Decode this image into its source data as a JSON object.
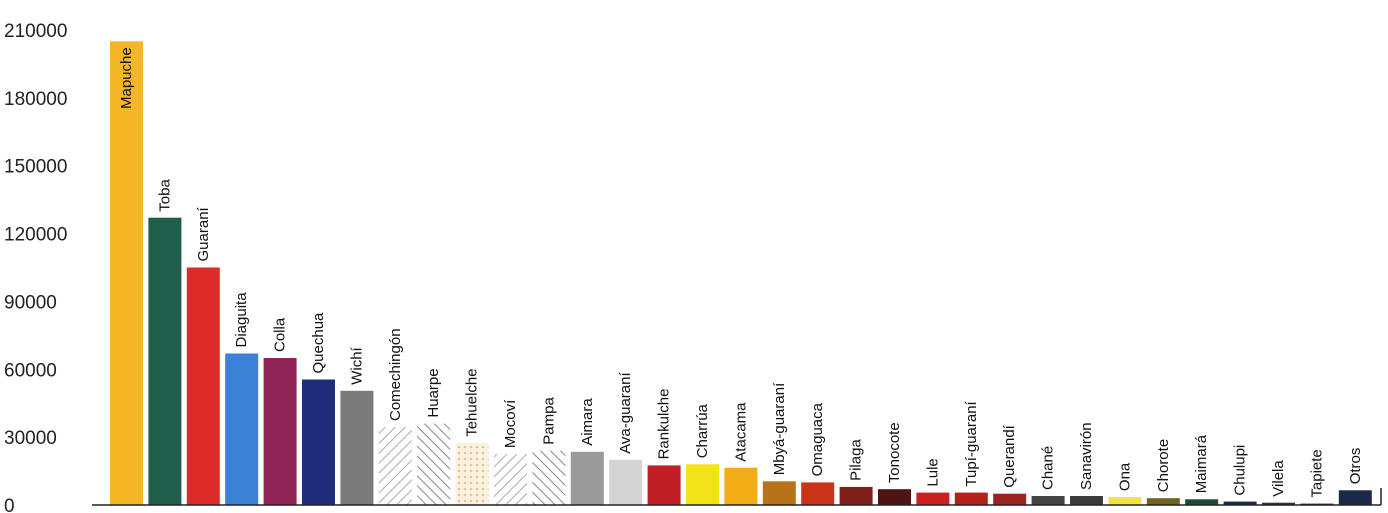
{
  "chart_data": {
    "type": "bar",
    "title": "",
    "xlabel": "",
    "ylabel": "",
    "ylim": [
      0,
      210000
    ],
    "yticks": [
      0,
      30000,
      60000,
      90000,
      120000,
      150000,
      180000,
      210000
    ],
    "grid": false,
    "categories": [
      "Mapuche",
      "Toba",
      "Guaraní",
      "Diaguita",
      "Colla",
      "Quechua",
      "Wichí",
      "Comechingón",
      "Huarpe",
      "Tehuelche",
      "Mocoví",
      "Pampa",
      "Aimara",
      "Ava-guaraní",
      "Rankulche",
      "Charrúa",
      "Atacama",
      "Mbyá-guaraní",
      "Omaguaca",
      "Pilaga",
      "Tonocote",
      "Lule",
      "Tupí-guaraní",
      "Querandí",
      "Chané",
      "Sanavirón",
      "Ona",
      "Chorote",
      "Maimará",
      "Chulupi",
      "Vilela",
      "Tapiete",
      "Otros"
    ],
    "values": [
      205000,
      127000,
      105000,
      67000,
      65000,
      55500,
      50500,
      34500,
      36000,
      27500,
      22500,
      24000,
      23500,
      20000,
      17500,
      18000,
      16500,
      10500,
      10000,
      8000,
      7000,
      5500,
      5500,
      5000,
      4000,
      4000,
      3500,
      3000,
      2500,
      1500,
      1000,
      600,
      6500
    ],
    "colors": [
      "#f5b626",
      "#1e5e4a",
      "#de2b2a",
      "#3b82d6",
      "#8e2455",
      "#1f2c78",
      "#7a7a7a",
      "#9a9a9a",
      "#888888",
      "#f0d6b0",
      "#9c9c9c",
      "#f0b890",
      "#9a9a9a",
      "#d4d4d4",
      "#c01f26",
      "#f2e21a",
      "#f2ad16",
      "#b8731a",
      "#cc3418",
      "#7e1f1c",
      "#4e1414",
      "#cc2020",
      "#b4201a",
      "#9a2520",
      "#444444",
      "#3a3a3a",
      "#f2e24a",
      "#6e6422",
      "#1e4a30",
      "#1e2a4a",
      "#333333",
      "#333333",
      "#1c2848"
    ],
    "patterns": [
      "",
      "",
      "",
      "",
      "",
      "",
      "",
      "hatch-right",
      "hatch-left",
      "dots",
      "hatch-right",
      "hatch-left",
      "",
      "",
      "",
      "",
      "",
      "",
      "",
      "",
      "",
      "",
      "",
      "",
      "",
      "",
      "",
      "",
      "",
      "",
      "",
      "",
      ""
    ]
  }
}
